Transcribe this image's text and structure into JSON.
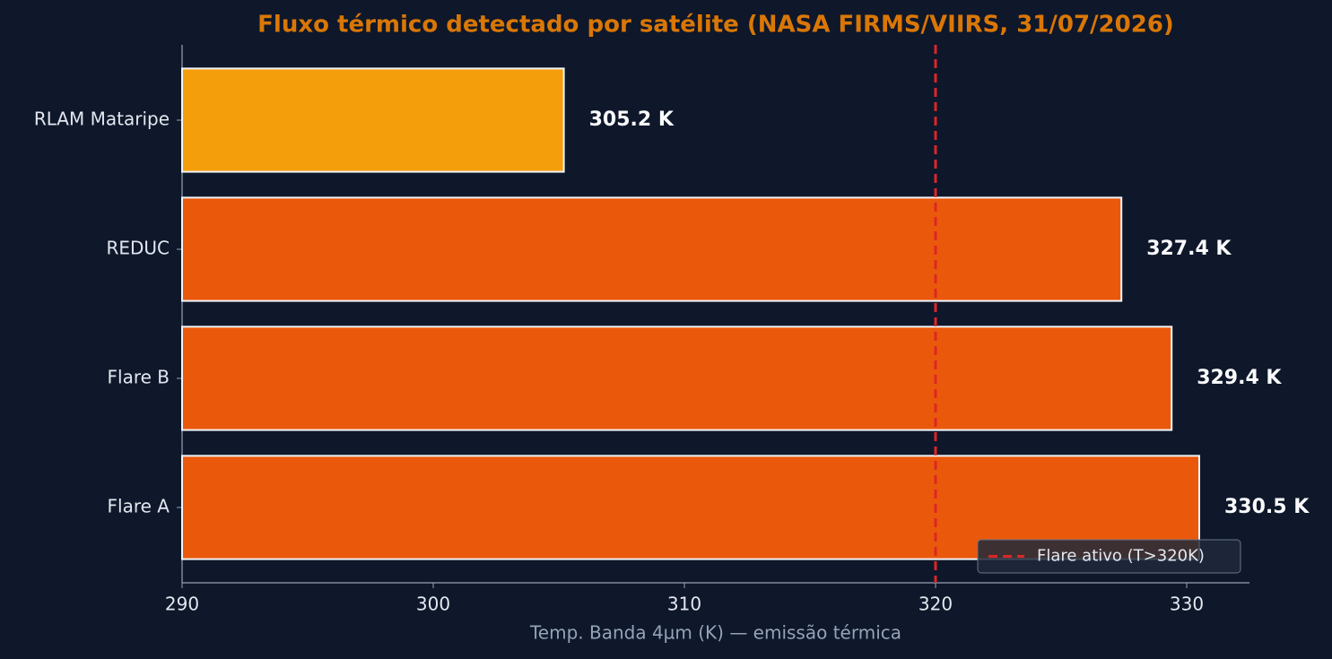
{
  "chart_data": {
    "type": "barh",
    "title": "Fluxo térmico detectado por satélite (NASA FIRMS/VIIRS, 31/07/2026)",
    "xlabel": "Temp. Banda 4µm (K) — emissão térmica",
    "categories": [
      "RLAM Mataripe",
      "REDUC",
      "Flare B",
      "Flare A"
    ],
    "values": [
      305.2,
      327.4,
      329.4,
      330.5
    ],
    "value_labels": [
      "305.2 K",
      "327.4 K",
      "329.4 K",
      "330.5 K"
    ],
    "colors": [
      "#f59e0b",
      "#ea580c",
      "#ea580c",
      "#ea580c"
    ],
    "xlim": [
      290,
      332.5
    ],
    "xticks": [
      290,
      300,
      310,
      320,
      330
    ],
    "reference_line": {
      "value": 320,
      "label": "Flare ativo (T>320K)",
      "color": "#dc2626"
    },
    "legend": "lower right"
  }
}
